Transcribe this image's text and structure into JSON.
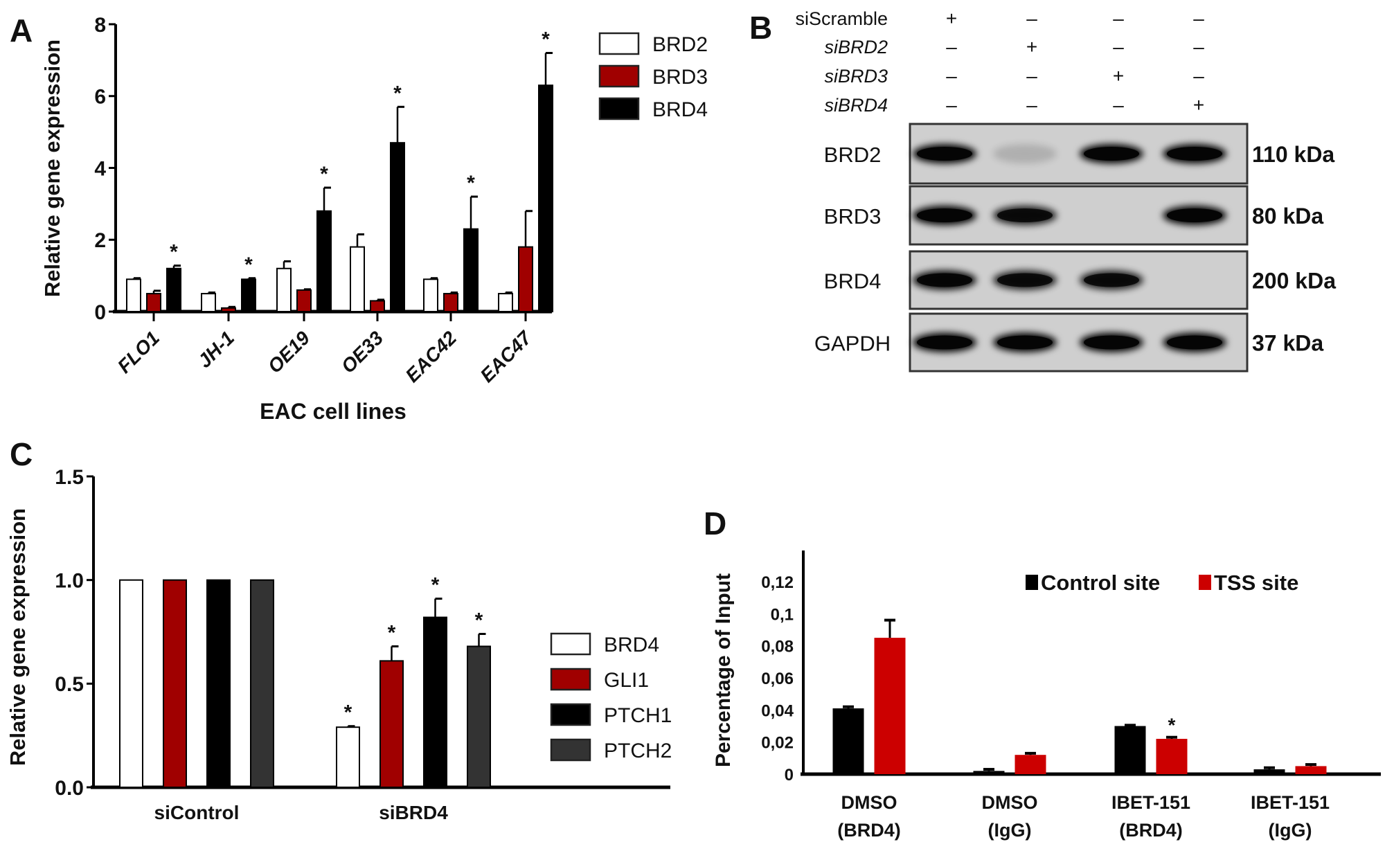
{
  "chart_data": [
    {
      "panel": "A",
      "type": "bar",
      "ylabel": "Relative gene expression",
      "xlabel": "EAC cell lines",
      "ylim": [
        0,
        8
      ],
      "yticks": [
        "0",
        "2",
        "4",
        "6",
        "8"
      ],
      "categories": [
        "FLO1",
        "JH-1",
        "OE19",
        "OE33",
        "EAC42",
        "EAC47"
      ],
      "legend_placement": "top-right",
      "series": [
        {
          "name": "BRD2",
          "color": "#ffffff",
          "values": [
            0.9,
            0.5,
            1.2,
            1.8,
            0.9,
            0.5
          ],
          "errors": [
            0.03,
            0.03,
            0.2,
            0.35,
            0.03,
            0.03
          ],
          "stars": [
            false,
            false,
            false,
            false,
            false,
            false
          ]
        },
        {
          "name": "BRD3",
          "color": "#a00000",
          "values": [
            0.5,
            0.1,
            0.6,
            0.3,
            0.5,
            1.8
          ],
          "errors": [
            0.08,
            0.03,
            0.02,
            0.03,
            0.03,
            1.0
          ],
          "stars": [
            false,
            false,
            false,
            false,
            false,
            false
          ]
        },
        {
          "name": "BRD4",
          "color": "#000000",
          "values": [
            1.2,
            0.9,
            2.8,
            4.7,
            2.3,
            6.3
          ],
          "errors": [
            0.08,
            0.03,
            0.65,
            1.0,
            0.9,
            0.9
          ],
          "stars": [
            true,
            true,
            true,
            true,
            true,
            true
          ]
        }
      ],
      "star_label": "*"
    },
    {
      "panel": "C",
      "type": "bar",
      "ylabel": "Relative gene expression",
      "ylim": [
        0,
        1.5
      ],
      "yticks": [
        "0.0",
        "0.5",
        "1.0",
        "1.5"
      ],
      "categories": [
        "siControl",
        "siBRD4"
      ],
      "legend_placement": "right",
      "series": [
        {
          "name": "BRD4",
          "color": "#ffffff",
          "values": [
            1.0,
            0.29
          ],
          "errors": [
            0,
            0.005
          ],
          "stars": [
            false,
            true
          ]
        },
        {
          "name": "GLI1",
          "color": "#a00000",
          "values": [
            1.0,
            0.61
          ],
          "errors": [
            0,
            0.07
          ],
          "stars": [
            false,
            true
          ]
        },
        {
          "name": "PTCH1",
          "color": "#000000",
          "values": [
            1.0,
            0.82
          ],
          "errors": [
            0,
            0.09
          ],
          "stars": [
            false,
            true
          ]
        },
        {
          "name": "PTCH2",
          "color": "#333333",
          "values": [
            1.0,
            0.68
          ],
          "errors": [
            0,
            0.06
          ],
          "stars": [
            false,
            true
          ]
        }
      ],
      "star_label": "*"
    },
    {
      "panel": "D",
      "type": "bar",
      "ylabel": "Percentage of Input",
      "ylim": [
        0,
        0.14
      ],
      "yticks": [
        "0",
        "0,02",
        "0,04",
        "0,06",
        "0,08",
        "0,1",
        "0,12"
      ],
      "categories": [
        [
          "DMSO",
          "(BRD4)"
        ],
        [
          "DMSO",
          "(IgG)"
        ],
        [
          "IBET-151",
          "(BRD4)"
        ],
        [
          "IBET-151",
          "(IgG)"
        ]
      ],
      "legend_placement": "top-right",
      "series": [
        {
          "name": "Control site",
          "color": "#000000",
          "values": [
            0.041,
            0.002,
            0.03,
            0.003
          ],
          "errors": [
            0.001,
            0.001,
            0.0005,
            0.001
          ],
          "stars": [
            false,
            false,
            false,
            false
          ]
        },
        {
          "name": "TSS site",
          "color": "#cc0000",
          "values": [
            0.085,
            0.012,
            0.022,
            0.005
          ],
          "errors": [
            0.011,
            0.001,
            0.001,
            0.001
          ],
          "stars": [
            false,
            false,
            true,
            false
          ]
        }
      ],
      "star_label": "*"
    }
  ],
  "panels": {
    "a": "A",
    "b": "B",
    "c": "C",
    "d": "D"
  },
  "western_blot": {
    "conditions": [
      {
        "label": "siScramble",
        "italic": false,
        "signs": [
          "+",
          "–",
          "–",
          "–"
        ]
      },
      {
        "label": "siBRD2",
        "italic": true,
        "signs": [
          "–",
          "+",
          "–",
          "–"
        ]
      },
      {
        "label": "siBRD3",
        "italic": true,
        "signs": [
          "–",
          "–",
          "+",
          "–"
        ]
      },
      {
        "label": "siBRD4",
        "italic": true,
        "signs": [
          "–",
          "–",
          "–",
          "+"
        ]
      }
    ],
    "blots": [
      {
        "protein": "BRD2",
        "size": "110 kDa",
        "band_intensity": [
          1.0,
          0.15,
          1.0,
          1.0
        ]
      },
      {
        "protein": "BRD3",
        "size": "80 kDa",
        "band_intensity": [
          1.0,
          0.85,
          0.0,
          1.0
        ]
      },
      {
        "protein": "BRD4",
        "size": "200 kDa",
        "band_intensity": [
          0.95,
          0.85,
          0.85,
          0.0
        ]
      },
      {
        "protein": "GAPDH",
        "size": "37 kDa",
        "band_intensity": [
          1.0,
          1.0,
          1.0,
          1.0
        ]
      }
    ]
  }
}
